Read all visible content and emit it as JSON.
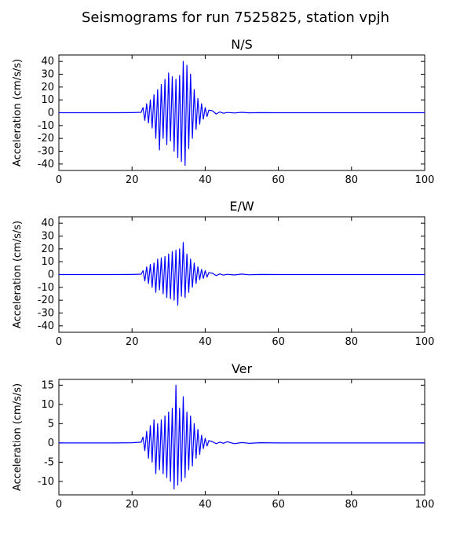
{
  "figure": {
    "title": "Seismograms for run 7525825, station vpjh"
  },
  "colors": {
    "trace": "#0000ff",
    "axes": "#000000",
    "background": "#ffffff"
  },
  "chart_data": [
    {
      "type": "line",
      "title": "N/S",
      "xlabel": "",
      "ylabel": "Acceleration (cm/s/s)",
      "xlim": [
        0,
        100
      ],
      "ylim": [
        -45,
        45
      ],
      "xticks": [
        0,
        20,
        40,
        60,
        80,
        100
      ],
      "yticks": [
        -40,
        -30,
        -20,
        -10,
        0,
        10,
        20,
        30,
        40
      ],
      "grid": false,
      "series": [
        {
          "x": [
            0,
            5,
            10,
            15,
            20,
            22.5,
            23,
            23.5,
            24,
            24.5,
            25,
            25.5,
            26,
            26.5,
            27,
            27.5,
            28,
            28.5,
            29,
            29.5,
            30,
            30.5,
            31,
            31.5,
            32,
            32.5,
            33,
            33.5,
            34,
            34.5,
            35,
            35.5,
            36,
            36.5,
            37,
            37.5,
            38,
            38.5,
            39,
            39.5,
            40,
            40.5,
            41,
            42,
            43,
            44,
            45,
            46,
            48,
            50,
            52,
            55,
            60,
            70,
            80,
            90,
            100
          ],
          "y": [
            0,
            0,
            0,
            0,
            0.1,
            0.3,
            4,
            -6,
            7,
            -8,
            10,
            -12,
            14,
            -20,
            18,
            -29,
            22,
            -20,
            26,
            -25,
            31,
            -22,
            28,
            -30,
            26,
            -35,
            29,
            -38,
            40,
            -41,
            37,
            -28,
            30,
            -20,
            18,
            -13,
            11,
            -9,
            7,
            -5,
            4,
            -3,
            2,
            1.5,
            -1,
            0.6,
            -0.4,
            0.2,
            -0.2,
            0.3,
            -0.1,
            0.1,
            0,
            0,
            0,
            0,
            0
          ]
        }
      ]
    },
    {
      "type": "line",
      "title": "E/W",
      "xlabel": "",
      "ylabel": "Acceleration (cm/s/s)",
      "xlim": [
        0,
        100
      ],
      "ylim": [
        -45,
        45
      ],
      "xticks": [
        0,
        20,
        40,
        60,
        80,
        100
      ],
      "yticks": [
        -40,
        -30,
        -20,
        -10,
        0,
        10,
        20,
        30,
        40
      ],
      "grid": false,
      "series": [
        {
          "x": [
            0,
            5,
            10,
            15,
            20,
            22.5,
            23,
            23.5,
            24,
            24.5,
            25,
            25.5,
            26,
            26.5,
            27,
            27.5,
            28,
            28.5,
            29,
            29.5,
            30,
            30.5,
            31,
            31.5,
            32,
            32.5,
            33,
            33.5,
            34,
            34.5,
            35,
            35.5,
            36,
            36.5,
            37,
            37.5,
            38,
            38.5,
            39,
            39.5,
            40,
            40.5,
            41,
            42,
            43,
            44,
            45,
            46,
            48,
            50,
            52,
            55,
            60,
            70,
            80,
            90,
            100
          ],
          "y": [
            0,
            0,
            0,
            0,
            0.1,
            0.3,
            3,
            -5,
            6,
            -7,
            8,
            -10,
            9,
            -14,
            12,
            -12,
            13,
            -15,
            14,
            -18,
            16,
            -19,
            18,
            -20,
            19,
            -24,
            20,
            -17,
            25,
            -18,
            16,
            -14,
            12,
            -10,
            9,
            -7,
            6,
            -4,
            4,
            -3,
            3,
            -2,
            1.5,
            1,
            -0.8,
            0.5,
            -0.4,
            0.2,
            -0.3,
            0.4,
            -0.2,
            0.1,
            0,
            0,
            0,
            0,
            0
          ]
        }
      ]
    },
    {
      "type": "line",
      "title": "Ver",
      "xlabel": "",
      "ylabel": "Acceleration (cm/s/s)",
      "xlim": [
        0,
        100
      ],
      "ylim": [
        -13.5,
        16.5
      ],
      "xticks": [
        0,
        20,
        40,
        60,
        80,
        100
      ],
      "yticks": [
        -10,
        -5,
        0,
        5,
        10,
        15
      ],
      "grid": false,
      "series": [
        {
          "x": [
            0,
            5,
            10,
            15,
            20,
            22.5,
            23,
            23.5,
            24,
            24.5,
            25,
            25.5,
            26,
            26.5,
            27,
            27.5,
            28,
            28.5,
            29,
            29.5,
            30,
            30.5,
            31,
            31.5,
            32,
            32.5,
            33,
            33.5,
            34,
            34.5,
            35,
            35.5,
            36,
            36.5,
            37,
            37.5,
            38,
            38.5,
            39,
            39.5,
            40,
            40.5,
            41,
            42,
            43,
            44,
            45,
            46,
            48,
            50,
            52,
            55,
            60,
            70,
            80,
            90,
            100
          ],
          "y": [
            0,
            0,
            0,
            0,
            0.05,
            0.2,
            1.5,
            -2,
            3,
            -4,
            4.5,
            -5,
            6,
            -8,
            5,
            -7,
            6,
            -8,
            7,
            -9,
            8,
            -10,
            9,
            -12,
            15,
            -11,
            9,
            -10,
            12,
            -9,
            8,
            -7,
            7,
            -6,
            5,
            -4,
            3.5,
            -3,
            2,
            -1.5,
            1.2,
            -0.8,
            0.6,
            0.3,
            -0.2,
            0.2,
            -0.1,
            0.3,
            -0.2,
            0.1,
            -0.1,
            0.05,
            0,
            0,
            0,
            0,
            0
          ]
        }
      ]
    }
  ]
}
